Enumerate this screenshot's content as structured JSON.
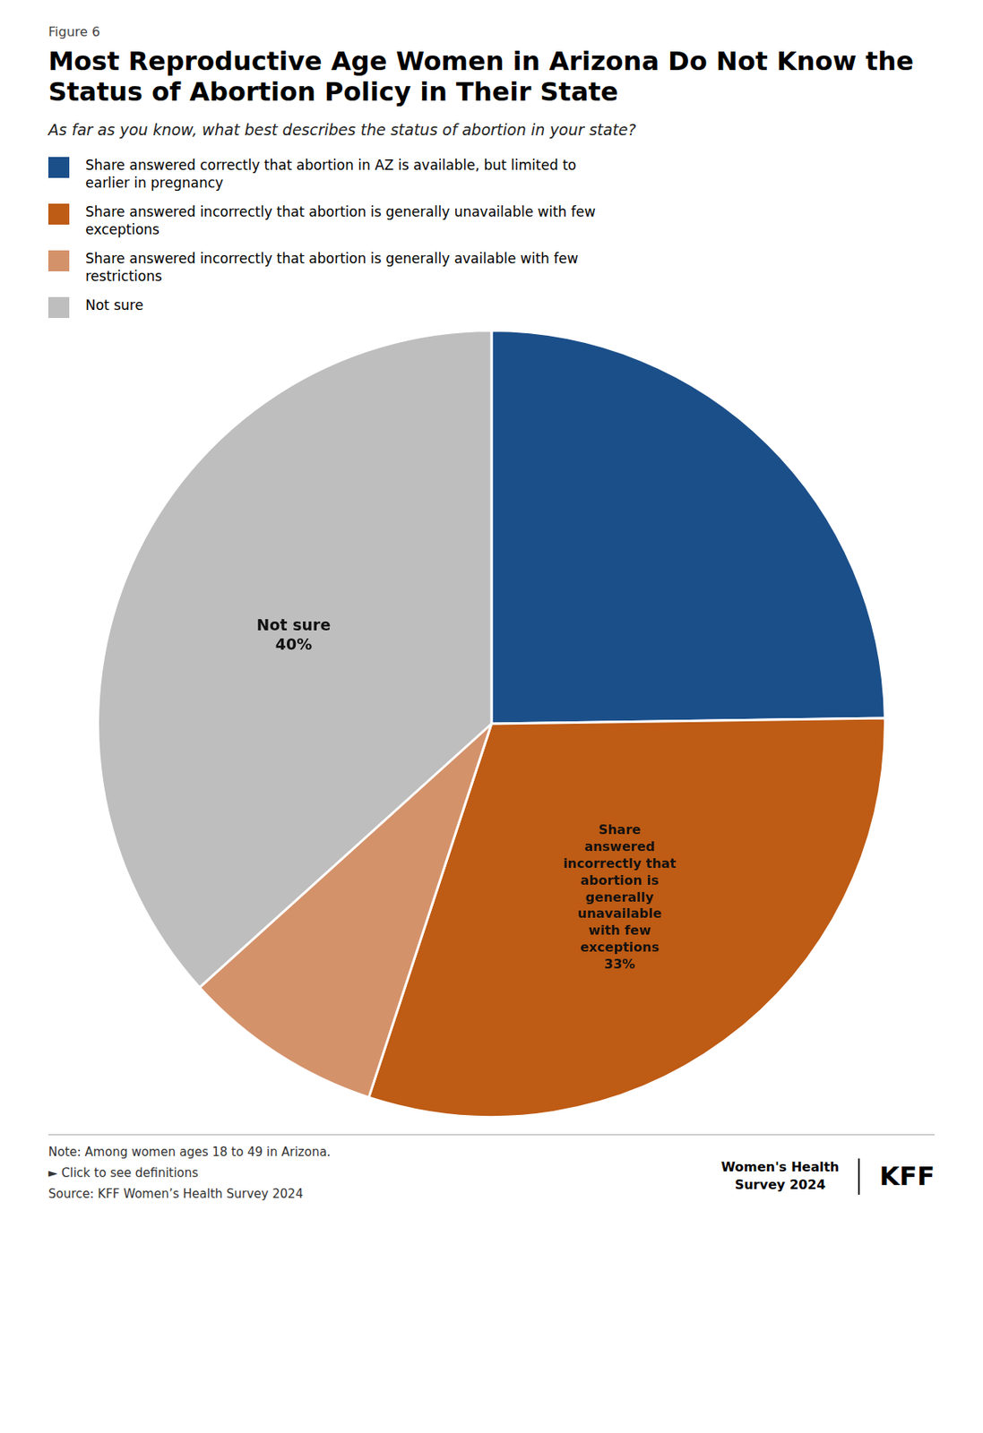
{
  "chart_data": {
    "type": "pie",
    "title": "Most Reproductive Age Women in Arizona Do Not Know the\nStatus of Abortion Policy in Their State",
    "subtitle": "As far as you know, what best describes the status of abortion in your state?",
    "categories": [
      "Share answered correctly that abortion in AZ is available, but limited to\nearlier in pregnancy",
      "Share answered incorrectly that abortion is generally unavailable with few\nexceptions",
      "Share answered incorrectly that abortion is generally available with few\nrestrictions",
      "Not sure"
    ],
    "values": [
      27,
      33,
      9,
      40
    ],
    "colors": [
      "#1B4F8A",
      "#BE5B14",
      "#D4926A",
      "#BEBEBE"
    ],
    "value_labels": [
      null,
      "Share\nanswered\nincorrectly that\nabortion is\ngenerally\nunavailable\nwith few\nexceptions\n33%",
      null,
      "Not sure\n40%"
    ],
    "legend": "top",
    "annotations": [
      "Figure 6",
      "Note: Among women ages 18 to 49 in Arizona.",
      "► Click to see definitions",
      "Source: KFF Women’s Health Survey 2024",
      "Women's Health\nSurvey 2024",
      "KFF"
    ]
  }
}
